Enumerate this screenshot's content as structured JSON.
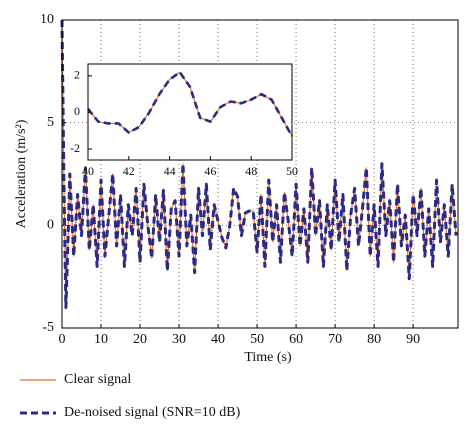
{
  "chart_data": [
    {
      "type": "line",
      "xlabel": "Time (s)",
      "ylabel": "Acceleration (m/s²)",
      "x": [
        0,
        0.5,
        1,
        1.5,
        2,
        3,
        4,
        5,
        6,
        7,
        8,
        9,
        10,
        11,
        12,
        13,
        14,
        15,
        16,
        17,
        18,
        19,
        20,
        21,
        22,
        23,
        24,
        25,
        26,
        27,
        28,
        29,
        30,
        31,
        32,
        33,
        34,
        35,
        36,
        37,
        38,
        39,
        40,
        41,
        42,
        43,
        44,
        45,
        46,
        47,
        48,
        49,
        50,
        51,
        52,
        53,
        54,
        55,
        56,
        57,
        58,
        59,
        60,
        61,
        62,
        63,
        64,
        65,
        66,
        67,
        68,
        69,
        70,
        71,
        72,
        73,
        74,
        75,
        76,
        77,
        78,
        79,
        80,
        81,
        82,
        83,
        84,
        85,
        86,
        87,
        88,
        89,
        90,
        91,
        92,
        93,
        94,
        95,
        96,
        97,
        98,
        99,
        100,
        101
      ],
      "series": [
        {
          "name": "Clear signal",
          "color": "#e8702a",
          "style": "solid",
          "values": [
            10,
            2,
            -4,
            -1,
            2.5,
            -1.5,
            1.5,
            -0.5,
            2.8,
            -1.2,
            1,
            -2,
            2.2,
            -1.5,
            0.5,
            2.5,
            -1,
            1.5,
            -2,
            1,
            -0.5,
            1.8,
            -1.8,
            2,
            0,
            -1.6,
            1.5,
            -0.8,
            1.7,
            -2.2,
            0.8,
            1.2,
            -1.5,
            3,
            -1,
            0.5,
            -2.3,
            1.8,
            -0.5,
            2,
            -1.2,
            1,
            0.2,
            -0.6,
            -1.1,
            0,
            1.8,
            1.4,
            -0.5,
            0.6,
            0.7,
            0.7,
            -1.3,
            1.5,
            -2,
            2.2,
            -0.8,
            1,
            -1.8,
            1.6,
            0.2,
            -1.5,
            2,
            -1,
            0.8,
            -1.8,
            2.8,
            -0.5,
            1.2,
            -2,
            1,
            -1.2,
            2.2,
            -0.8,
            1.5,
            -2.2,
            0.5,
            1.8,
            -1,
            0.8,
            2.8,
            -1.5,
            1,
            -2,
            3,
            -0.5,
            1.2,
            -1.8,
            2,
            -1,
            0.5,
            -2.6,
            1.5,
            -0.5,
            1.8,
            -1.5,
            0.8,
            -2,
            2.2,
            -0.8,
            1,
            -1.5,
            2,
            -0.5
          ]
        },
        {
          "name": "De-noised signal (SNR=10 dB)",
          "color": "#2b2b85",
          "style": "dashed",
          "values": [
            10,
            2,
            -4,
            -1,
            2.5,
            -1.5,
            1.5,
            -0.5,
            2.8,
            -1.2,
            1,
            -2,
            2.2,
            -1.5,
            0.5,
            2.5,
            -1,
            1.5,
            -2,
            1,
            -0.5,
            1.8,
            -1.8,
            2,
            0,
            -1.6,
            1.5,
            -0.8,
            1.7,
            -2.2,
            0.8,
            1.2,
            -1.5,
            3,
            -1,
            0.5,
            -2.3,
            1.8,
            -0.5,
            2,
            -1.2,
            1,
            0.2,
            -0.6,
            -1.1,
            0,
            1.8,
            1.4,
            -0.5,
            0.6,
            0.7,
            0.7,
            -1.3,
            1.5,
            -2,
            2.2,
            -0.8,
            1,
            -1.8,
            1.6,
            0.2,
            -1.5,
            2,
            -1,
            0.8,
            -1.8,
            2.8,
            -0.5,
            1.2,
            -2,
            1,
            -1.2,
            2.2,
            -0.8,
            1.5,
            -2.2,
            0.5,
            1.8,
            -1,
            0.8,
            2.8,
            -1.5,
            1,
            -2,
            3,
            -0.5,
            1.2,
            -1.8,
            2,
            -1,
            0.5,
            -2.6,
            1.5,
            -0.5,
            1.8,
            -1.5,
            0.8,
            -2,
            2.2,
            -0.8,
            1,
            -1.5,
            2,
            -0.5
          ]
        }
      ],
      "xlim": [
        0,
        101.5
      ],
      "xticks": [
        0,
        10,
        20,
        30,
        40,
        50,
        60,
        70,
        80,
        90
      ],
      "ylim": [
        -5,
        10
      ],
      "yticks": [
        -5,
        0,
        5,
        10
      ],
      "grid": true,
      "legend": "bottom"
    },
    {
      "type": "line",
      "x": [
        40,
        40.5,
        41,
        41.5,
        42,
        42.5,
        43,
        43.5,
        44,
        44.5,
        45,
        45.5,
        46,
        46.5,
        47,
        47.5,
        48,
        48.5,
        49,
        49.5,
        50
      ],
      "series": [
        {
          "color": "#e8702a",
          "style": "solid",
          "values": [
            0.2,
            -0.5,
            -0.6,
            -0.6,
            -1.1,
            -0.8,
            0,
            1,
            1.8,
            2.2,
            1.4,
            -0.3,
            -0.5,
            0.3,
            0.6,
            0.5,
            0.7,
            1,
            0.7,
            -0.3,
            -1.3
          ]
        },
        {
          "color": "#2b2b85",
          "style": "dashed",
          "values": [
            0.2,
            -0.5,
            -0.6,
            -0.6,
            -1.1,
            -0.8,
            0,
            1,
            1.8,
            2.2,
            1.4,
            -0.3,
            -0.5,
            0.3,
            0.6,
            0.5,
            0.7,
            1,
            0.7,
            -0.3,
            -1.3
          ]
        }
      ],
      "xlim": [
        40,
        50
      ],
      "xticks": [
        40,
        42,
        44,
        46,
        48,
        50
      ],
      "ylim": [
        -2.6,
        2.65
      ],
      "yticks": [
        -2,
        0,
        2
      ],
      "grid": false
    }
  ]
}
